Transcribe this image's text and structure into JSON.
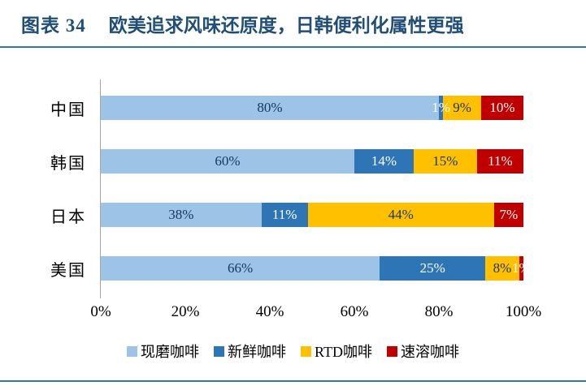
{
  "figure": {
    "label": "图表 34",
    "title": "欧美追求风味还原度，日韩便利化属性更强"
  },
  "style": {
    "accent": "#2E75B6",
    "title_color": "#1F4E79",
    "axis_line_color": "#A6A6A6"
  },
  "chart_data": {
    "type": "bar",
    "orientation": "horizontal",
    "stacked": true,
    "title": "欧美追求风味还原度，日韩便利化属性更强",
    "categories": [
      "中国",
      "韩国",
      "日本",
      "美国"
    ],
    "series": [
      {
        "name": "现磨咖啡",
        "color": "#9DC3E6",
        "label_color": "#17375E",
        "values": [
          80,
          60,
          38,
          66
        ]
      },
      {
        "name": "新鲜咖啡",
        "color": "#2E75B6",
        "label_color": "#FFFFFF",
        "values": [
          1,
          14,
          11,
          25
        ]
      },
      {
        "name": "RTD咖啡",
        "color": "#FFC000",
        "label_color": "#17375E",
        "values": [
          9,
          15,
          44,
          8
        ]
      },
      {
        "name": "速溶咖啡",
        "color": "#C00000",
        "label_color": "#FFFFFF",
        "values": [
          10,
          11,
          7,
          1
        ]
      }
    ],
    "x_ticks": [
      "0%",
      "20%",
      "40%",
      "60%",
      "80%",
      "100%"
    ],
    "xlim": [
      0,
      100
    ],
    "value_suffix": "%",
    "grid": false,
    "legend_position": "bottom"
  }
}
